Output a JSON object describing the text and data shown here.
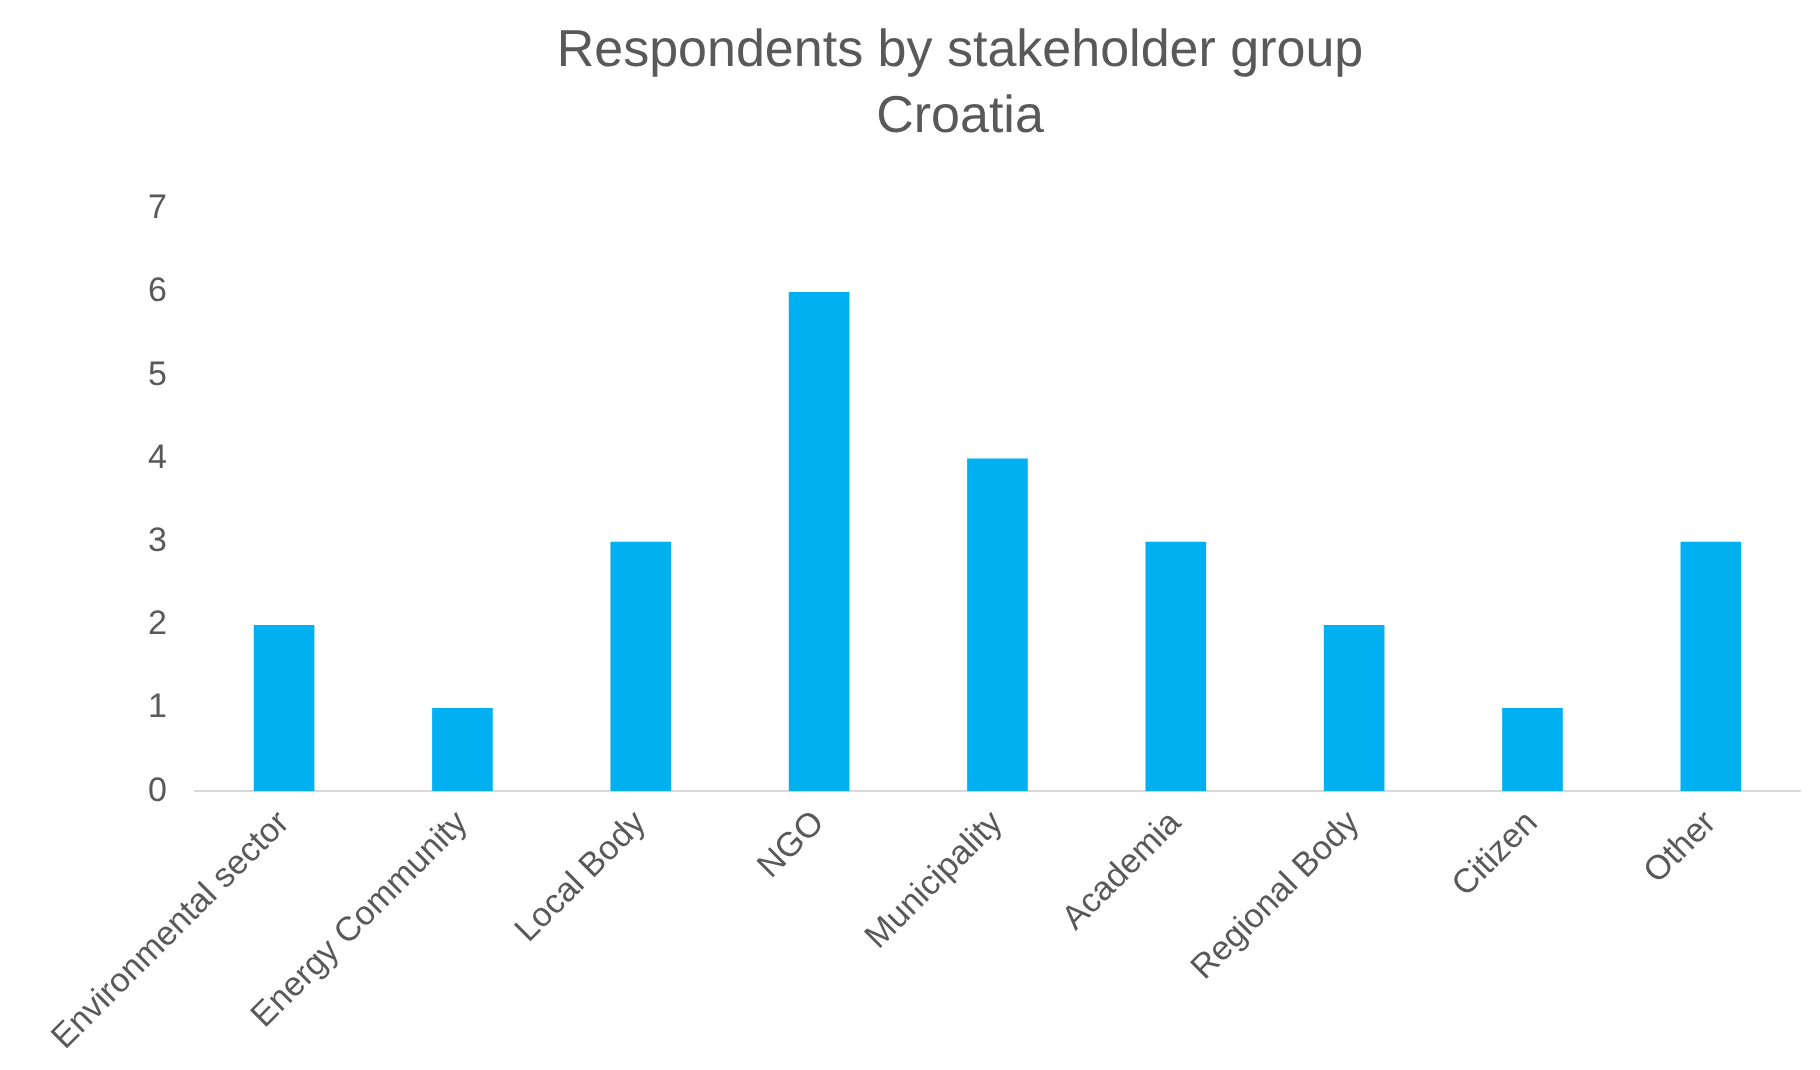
{
  "chart_data": {
    "type": "bar",
    "title": "Respondents by stakeholder group",
    "subtitle": "Croatia",
    "categories": [
      "Environmental sector",
      "Energy Community",
      "Local Body",
      "NGO",
      "Municipality",
      "Academia",
      "Regional Body",
      "Citizen",
      "Other"
    ],
    "values": [
      2,
      1,
      3,
      6,
      4,
      3,
      2,
      1,
      3
    ],
    "color": "#00b0f0",
    "ylim": [
      0,
      7
    ],
    "yticks": [
      0,
      1,
      2,
      3,
      4,
      5,
      6,
      7
    ],
    "grid": false,
    "legend": false
  }
}
